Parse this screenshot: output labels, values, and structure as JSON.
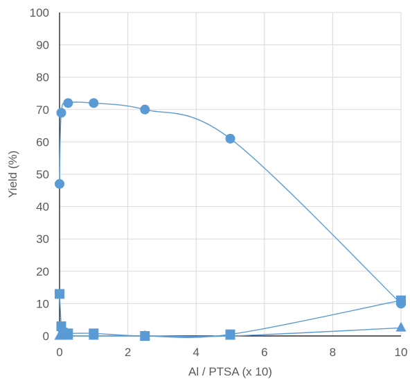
{
  "chart_data": {
    "type": "scatter",
    "title": "",
    "xlabel": "Al / PTSA (x 10)",
    "ylabel": "Yield (%)",
    "xlim": [
      0,
      10
    ],
    "ylim": [
      0,
      100
    ],
    "x_ticks": [
      "0",
      "2",
      "4",
      "6",
      "8",
      "10"
    ],
    "y_ticks": [
      "0",
      "10",
      "20",
      "30",
      "40",
      "50",
      "60",
      "70",
      "80",
      "90",
      "100"
    ],
    "grid": true,
    "legend": "none",
    "colors": {
      "series": "#5B9BD5",
      "line": "#5B9BD5",
      "grid": "#d9d9d9",
      "axis": "#000000",
      "text": "#595959"
    },
    "series": [
      {
        "marker": "circle",
        "x": [
          0,
          0.05,
          0.25,
          1,
          2.5,
          5,
          10
        ],
        "y": [
          47,
          69,
          72,
          72,
          70,
          61,
          10
        ]
      },
      {
        "marker": "square",
        "x": [
          0,
          0.05,
          0.1,
          0.25,
          1,
          2.5,
          5,
          10
        ],
        "y": [
          13,
          3,
          1,
          0.8,
          0.8,
          0,
          0.5,
          11
        ]
      },
      {
        "marker": "triangle",
        "x": [
          0,
          0.05,
          0.25,
          1,
          2.5,
          5,
          10
        ],
        "y": [
          0,
          0,
          0,
          0,
          0,
          0,
          2.5
        ]
      }
    ]
  }
}
